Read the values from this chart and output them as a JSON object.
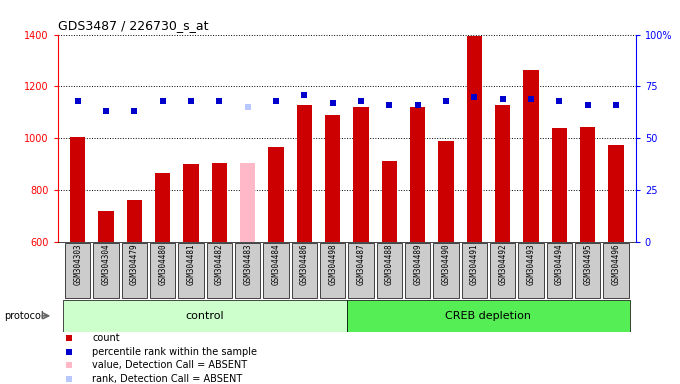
{
  "title": "GDS3487 / 226730_s_at",
  "samples": [
    "GSM304303",
    "GSM304304",
    "GSM304479",
    "GSM304480",
    "GSM304481",
    "GSM304482",
    "GSM304483",
    "GSM304484",
    "GSM304486",
    "GSM304498",
    "GSM304487",
    "GSM304488",
    "GSM304489",
    "GSM304490",
    "GSM304491",
    "GSM304492",
    "GSM304493",
    "GSM304494",
    "GSM304495",
    "GSM304496"
  ],
  "count_values": [
    1005,
    720,
    762,
    865,
    900,
    906,
    906,
    968,
    1130,
    1090,
    1120,
    912,
    1120,
    990,
    1395,
    1130,
    1265,
    1040,
    1045,
    975
  ],
  "absent_flags": [
    false,
    false,
    false,
    false,
    false,
    false,
    true,
    false,
    false,
    false,
    false,
    false,
    false,
    false,
    false,
    false,
    false,
    false,
    false,
    false
  ],
  "rank_values": [
    68,
    63,
    63,
    68,
    68,
    68,
    65,
    68,
    71,
    67,
    68,
    66,
    66,
    68,
    70,
    69,
    69,
    68,
    66,
    66
  ],
  "rank_absent_flags": [
    false,
    false,
    false,
    false,
    false,
    false,
    true,
    false,
    false,
    false,
    false,
    false,
    false,
    false,
    false,
    false,
    false,
    false,
    false,
    false
  ],
  "control_count": 10,
  "creb_count": 10,
  "bar_color_normal": "#cc0000",
  "bar_color_absent": "#ffb8c8",
  "dot_color_normal": "#0000cc",
  "dot_color_absent": "#b8c8ff",
  "plot_bg": "#ffffff",
  "xlabel_bg": "#cccccc",
  "control_bg": "#ccffcc",
  "creb_bg": "#55ee55",
  "ylim_left": [
    600,
    1400
  ],
  "ylim_right": [
    0,
    100
  ],
  "yticks_left": [
    600,
    800,
    1000,
    1200,
    1400
  ],
  "yticks_right": [
    0,
    25,
    50,
    75,
    100
  ],
  "ytick_labels_right": [
    "0",
    "25",
    "50",
    "75",
    "100%"
  ],
  "grid_color": "#000000",
  "title_fontsize": 9,
  "tick_fontsize": 7,
  "sample_fontsize": 5.5,
  "legend_fontsize": 7
}
